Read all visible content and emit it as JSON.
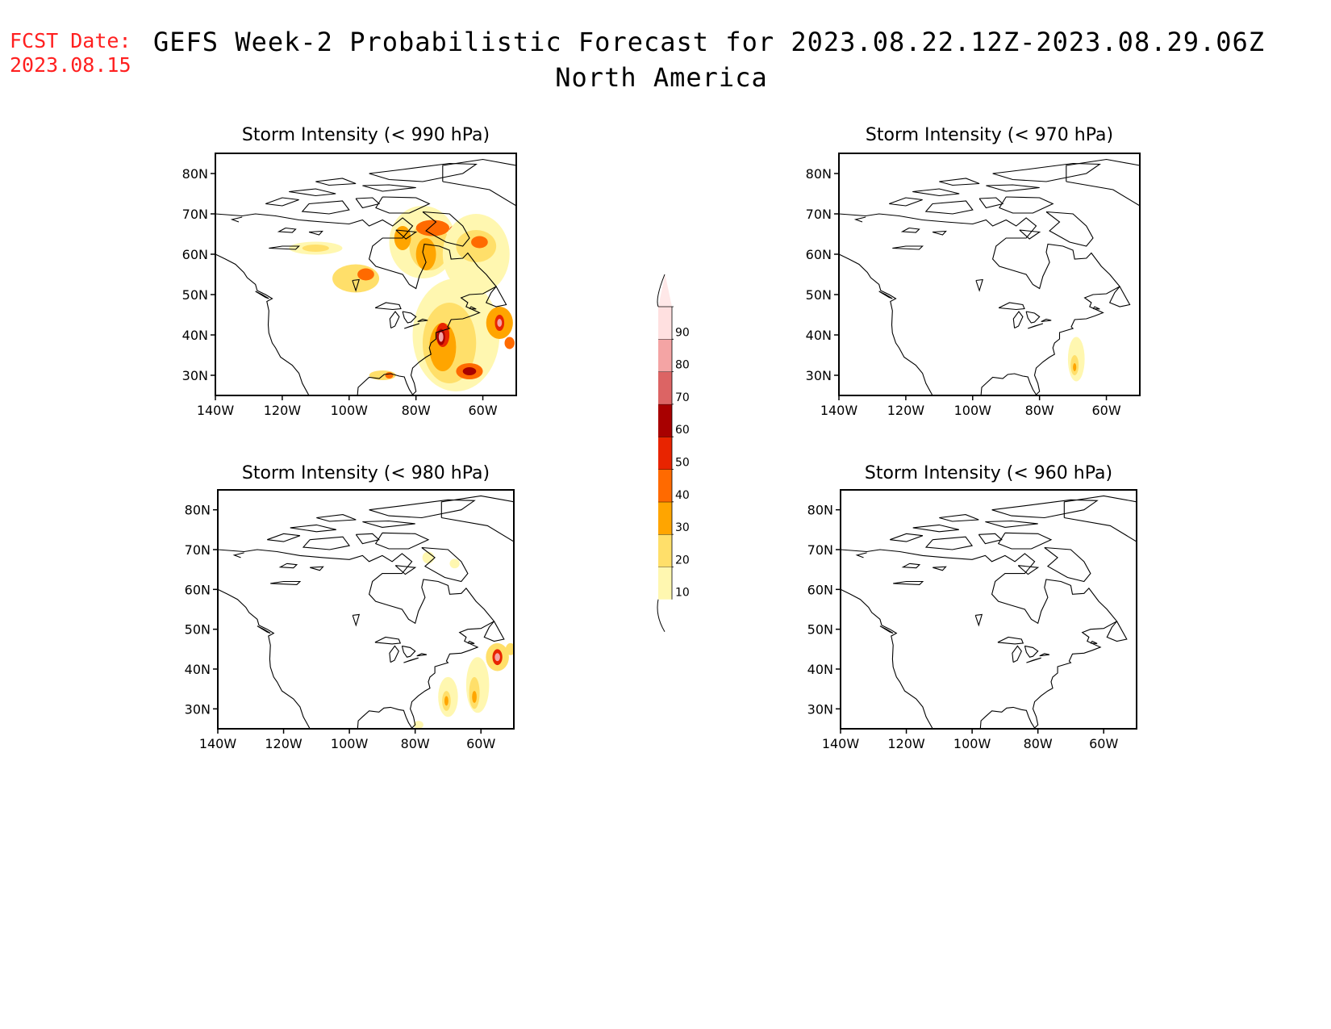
{
  "header": {
    "fcst_label": "FCST Date:",
    "fcst_date": "2023.08.15",
    "title": "GEFS Week-2 Probabilistic Forecast for 2023.08.22.12Z-2023.08.29.06Z",
    "subtitle": "North America"
  },
  "map_extent": {
    "lon_min": -140,
    "lon_max": -50,
    "lat_min": 25,
    "lat_max": 85
  },
  "ticks": {
    "lon_labels": [
      "140W",
      "120W",
      "100W",
      "80W",
      "60W"
    ],
    "lon_values": [
      -140,
      -120,
      -100,
      -80,
      -60
    ],
    "lat_labels": [
      "80N",
      "70N",
      "60N",
      "50N",
      "40N",
      "30N"
    ],
    "lat_values": [
      80,
      70,
      60,
      50,
      40,
      30
    ]
  },
  "colorbar": {
    "levels": [
      "10",
      "20",
      "30",
      "40",
      "50",
      "60",
      "70",
      "80",
      "90"
    ],
    "colors": [
      "#fff7b0",
      "#ffdf6a",
      "#ffa500",
      "#ff6a00",
      "#e82400",
      "#a80000",
      "#dc6464",
      "#f4a4a4",
      "#ffe0e0"
    ]
  },
  "panels": [
    {
      "id": "p990",
      "title": "Storm Intensity (< 990 hPa)",
      "blobs": [
        {
          "lon": -110,
          "lat": 61.5,
          "rlon": 8,
          "rlat": 1.6,
          "level": "10"
        },
        {
          "lon": -110,
          "lat": 61.5,
          "rlon": 4,
          "rlat": 0.9,
          "level": "20"
        },
        {
          "lon": -98,
          "lat": 54,
          "rlon": 7,
          "rlat": 3.5,
          "level": "20"
        },
        {
          "lon": -95,
          "lat": 55,
          "rlon": 2.5,
          "rlat": 1.5,
          "level": "40"
        },
        {
          "lon": -78,
          "lat": 63,
          "rlon": 10,
          "rlat": 9,
          "level": "10"
        },
        {
          "lon": -76,
          "lat": 62,
          "rlon": 6,
          "rlat": 6,
          "level": "20"
        },
        {
          "lon": -77,
          "lat": 60,
          "rlon": 3,
          "rlat": 4,
          "level": "30"
        },
        {
          "lon": -75,
          "lat": 66.5,
          "rlon": 5,
          "rlat": 2,
          "level": "40"
        },
        {
          "lon": -68,
          "lat": 66,
          "rlon": 2,
          "rlat": 1.2,
          "level": "50"
        },
        {
          "lon": -84,
          "lat": 64,
          "rlon": 2.5,
          "rlat": 3,
          "level": "30"
        },
        {
          "lon": -62,
          "lat": 60,
          "rlon": 10,
          "rlat": 10,
          "level": "10"
        },
        {
          "lon": -62,
          "lat": 62,
          "rlon": 6,
          "rlat": 4,
          "level": "20"
        },
        {
          "lon": -61,
          "lat": 63,
          "rlon": 2.5,
          "rlat": 1.5,
          "level": "40"
        },
        {
          "lon": -68,
          "lat": 40,
          "rlon": 13,
          "rlat": 14,
          "level": "10"
        },
        {
          "lon": -70,
          "lat": 38,
          "rlon": 8,
          "rlat": 10,
          "level": "20"
        },
        {
          "lon": -72,
          "lat": 37,
          "rlon": 4,
          "rlat": 6,
          "level": "30"
        },
        {
          "lon": -72,
          "lat": 40,
          "rlon": 2,
          "rlat": 3,
          "level": "50"
        },
        {
          "lon": -72.5,
          "lat": 39.5,
          "rlon": 1.2,
          "rlat": 2,
          "level": "60"
        },
        {
          "lon": -72.5,
          "lat": 39.5,
          "rlon": 0.7,
          "rlat": 1.2,
          "level": "80"
        },
        {
          "lon": -64,
          "lat": 31,
          "rlon": 4,
          "rlat": 2,
          "level": "40"
        },
        {
          "lon": -64,
          "lat": 31,
          "rlon": 2,
          "rlat": 1,
          "level": "60"
        },
        {
          "lon": -55,
          "lat": 43,
          "rlon": 4,
          "rlat": 4,
          "level": "30"
        },
        {
          "lon": -55,
          "lat": 43,
          "rlon": 1.4,
          "rlat": 2,
          "level": "50"
        },
        {
          "lon": -55,
          "lat": 43,
          "rlon": 0.7,
          "rlat": 1,
          "level": "80"
        },
        {
          "lon": -52,
          "lat": 38,
          "rlon": 1.5,
          "rlat": 1.5,
          "level": "40"
        },
        {
          "lon": -90,
          "lat": 30,
          "rlon": 4,
          "rlat": 1.2,
          "level": "20"
        },
        {
          "lon": -88,
          "lat": 30,
          "rlon": 1.2,
          "rlat": 0.8,
          "level": "40"
        }
      ]
    },
    {
      "id": "p970",
      "title": "Storm Intensity (< 970 hPa)",
      "blobs": [
        {
          "lon": -69,
          "lat": 34,
          "rlon": 2.5,
          "rlat": 5.5,
          "level": "10"
        },
        {
          "lon": -69.5,
          "lat": 32.5,
          "rlon": 1.2,
          "rlat": 2.5,
          "level": "20"
        },
        {
          "lon": -69.5,
          "lat": 32,
          "rlon": 0.5,
          "rlat": 1,
          "level": "30"
        }
      ]
    },
    {
      "id": "p980",
      "title": "Storm Intensity (< 980 hPa)",
      "blobs": [
        {
          "lon": -76,
          "lat": 68,
          "rlon": 1.8,
          "rlat": 1.5,
          "level": "10"
        },
        {
          "lon": -68,
          "lat": 66.5,
          "rlon": 1.5,
          "rlat": 1.2,
          "level": "10"
        },
        {
          "lon": -70,
          "lat": 33,
          "rlon": 3,
          "rlat": 5,
          "level": "10"
        },
        {
          "lon": -70.5,
          "lat": 32,
          "rlon": 1.3,
          "rlat": 2.5,
          "level": "20"
        },
        {
          "lon": -70.5,
          "lat": 32,
          "rlon": 0.6,
          "rlat": 1.2,
          "level": "30"
        },
        {
          "lon": -61,
          "lat": 36,
          "rlon": 3.5,
          "rlat": 7,
          "level": "10"
        },
        {
          "lon": -62,
          "lat": 34,
          "rlon": 1.6,
          "rlat": 4,
          "level": "20"
        },
        {
          "lon": -62,
          "lat": 33,
          "rlon": 0.7,
          "rlat": 1.5,
          "level": "30"
        },
        {
          "lon": -55,
          "lat": 43,
          "rlon": 3.5,
          "rlat": 3.5,
          "level": "20"
        },
        {
          "lon": -55,
          "lat": 43,
          "rlon": 1.5,
          "rlat": 2,
          "level": "50"
        },
        {
          "lon": -55,
          "lat": 43,
          "rlon": 0.8,
          "rlat": 1,
          "level": "80"
        },
        {
          "lon": -51,
          "lat": 45,
          "rlon": 1.5,
          "rlat": 1.5,
          "level": "20"
        },
        {
          "lon": -79,
          "lat": 26,
          "rlon": 1.5,
          "rlat": 1,
          "level": "10"
        }
      ]
    },
    {
      "id": "p960",
      "title": "Storm Intensity (< 960 hPa)",
      "blobs": []
    }
  ]
}
